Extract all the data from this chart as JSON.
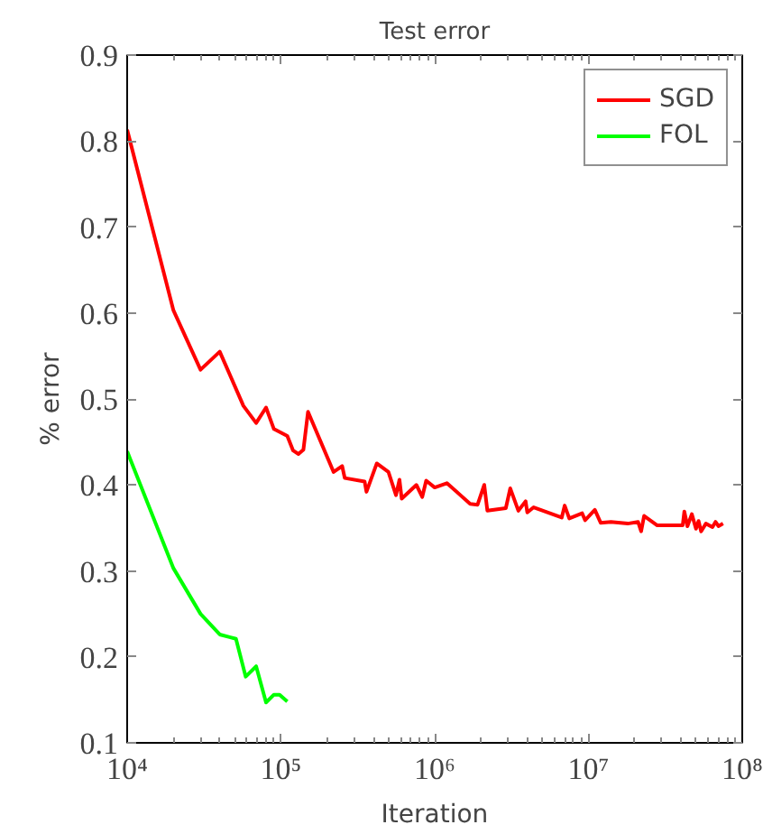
{
  "chart_data": {
    "type": "line",
    "title": "Test error",
    "xlabel": "Iteration",
    "ylabel": "% error",
    "log": "x",
    "xlim": [
      10000,
      100000000
    ],
    "xticks": [
      {
        "value": 10000,
        "label": "10⁴"
      },
      {
        "value": 100000,
        "label": "10⁵"
      },
      {
        "value": 1000000,
        "label": "10⁶"
      },
      {
        "value": 10000000,
        "label": "10⁷"
      },
      {
        "value": 100000000,
        "label": "10⁸"
      }
    ],
    "ylim": [
      0.1,
      0.9
    ],
    "yticks": [
      0.1,
      0.2,
      0.3,
      0.4,
      0.5,
      0.6,
      0.7,
      0.8,
      0.9
    ],
    "grid": false,
    "legend": "top right",
    "line_style": "solid",
    "marker": "none",
    "series": [
      {
        "name": "SGD",
        "color": "#ff0000",
        "x": [
          10000,
          20000,
          30000,
          40000,
          57000,
          69000,
          80000,
          90000,
          110000,
          120000,
          130000,
          140000,
          150000,
          220000,
          250000,
          260000,
          350000,
          360000,
          420000,
          500000,
          560000,
          590000,
          610000,
          760000,
          830000,
          880000,
          1000000,
          1200000,
          1700000,
          1900000,
          2100000,
          2200000,
          2900000,
          3100000,
          3500000,
          3900000,
          4000000,
          4400000,
          6700000,
          7000000,
          7500000,
          9100000,
          9500000,
          11000000,
          12000000,
          14000000,
          18000000,
          21000000,
          22000000,
          23000000,
          28000000,
          41000000,
          42000000,
          44000000,
          47000000,
          50000000,
          52000000,
          54000000,
          58000000,
          64000000,
          67000000,
          70000000,
          75000000
        ],
        "values": [
          0.813,
          0.603,
          0.534,
          0.555,
          0.492,
          0.472,
          0.49,
          0.465,
          0.457,
          0.44,
          0.436,
          0.441,
          0.485,
          0.415,
          0.422,
          0.408,
          0.404,
          0.392,
          0.425,
          0.415,
          0.388,
          0.406,
          0.384,
          0.4,
          0.386,
          0.405,
          0.397,
          0.402,
          0.378,
          0.377,
          0.4,
          0.37,
          0.373,
          0.396,
          0.37,
          0.381,
          0.368,
          0.374,
          0.362,
          0.376,
          0.361,
          0.367,
          0.359,
          0.371,
          0.356,
          0.357,
          0.355,
          0.357,
          0.346,
          0.364,
          0.353,
          0.353,
          0.369,
          0.352,
          0.366,
          0.349,
          0.358,
          0.346,
          0.355,
          0.351,
          0.357,
          0.352,
          0.355
        ]
      },
      {
        "name": "FOL",
        "color": "#00ff00",
        "x": [
          10000,
          20000,
          30000,
          40000,
          51000,
          59000,
          69000,
          80000,
          90000,
          98000,
          110000
        ],
        "values": [
          0.439,
          0.303,
          0.25,
          0.226,
          0.221,
          0.177,
          0.189,
          0.147,
          0.156,
          0.156,
          0.148
        ]
      }
    ]
  }
}
